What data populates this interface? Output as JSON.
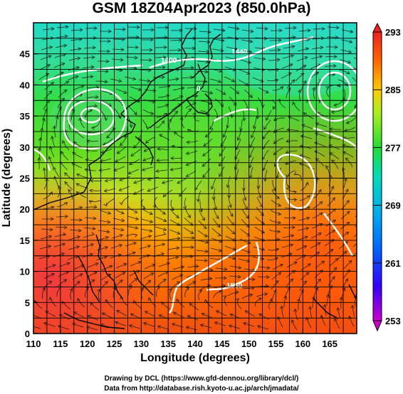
{
  "title": "GSM 18Z04Apr2023 (850.0hPa)",
  "credits": {
    "line1": "Drawing by DCL (https://www.gfd-dennou.org/library/dcl/)",
    "line2": "Data from http://database.rish.kyoto-u.ac.jp/arch/jmadata/"
  },
  "map": {
    "xlabel": "Longitude (degrees)",
    "ylabel": "Latitude  (degrees)",
    "lon_range": [
      110,
      170
    ],
    "lat_range": [
      0,
      50
    ],
    "lon_ticks": [
      "110",
      "115",
      "120",
      "125",
      "130",
      "135",
      "140",
      "145",
      "150",
      "155",
      "160",
      "165"
    ],
    "lat_ticks": [
      "0",
      "5",
      "10",
      "15",
      "20",
      "25",
      "30",
      "35",
      "40",
      "45"
    ],
    "contour_labels": [
      "1400",
      "1440",
      "0",
      "1550"
    ]
  },
  "colorbar": {
    "ticks": [
      "293",
      "285",
      "277",
      "269",
      "261",
      "253"
    ],
    "range": [
      253,
      293
    ],
    "colors": [
      "#cc00cc",
      "#3300ff",
      "#0077ff",
      "#00ccdd",
      "#00dd88",
      "#22dd22",
      "#aaee22",
      "#ffcc00",
      "#ff7700",
      "#ee3322"
    ]
  },
  "features": [
    "vortex-north-china",
    "vortex-pacific-east",
    "white-geopotential-contours",
    "black-streamlines",
    "coastlines"
  ]
}
